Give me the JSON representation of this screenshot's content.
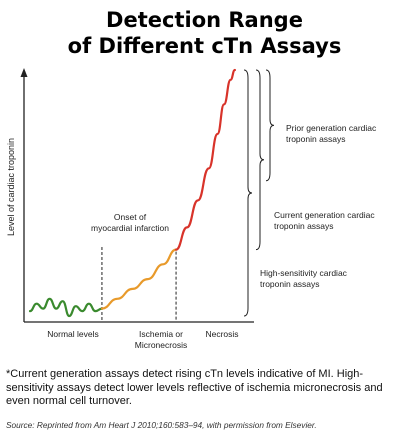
{
  "title_line1": "Detection Range",
  "title_line2": "of Different cTn Assays",
  "colors": {
    "normal": "#3a8a2e",
    "ischemia": "#e89a2b",
    "necrosis": "#d8332a",
    "axis": "#222222"
  },
  "chart_data": {
    "type": "line",
    "title": "Detection Range of Different cTn Assays",
    "xlabel": "",
    "ylabel": "Level of cardiac troponin",
    "categories": [
      "Normal levels",
      "Ischemia or Micronecrosis",
      "Necrosis"
    ],
    "markers": [
      {
        "label": "Onset of myocardial infarction",
        "x": 0.33
      },
      {
        "label": "",
        "x": 0.67
      }
    ],
    "series": [
      {
        "segment": "normal",
        "color": "#3a8a2e",
        "x": [
          0.0,
          0.03,
          0.06,
          0.09,
          0.12,
          0.15,
          0.18,
          0.21,
          0.24,
          0.27,
          0.3,
          0.33
        ],
        "y": [
          0.02,
          0.05,
          0.03,
          0.07,
          0.03,
          0.06,
          0.0,
          0.04,
          0.02,
          0.05,
          0.02,
          0.03
        ]
      },
      {
        "segment": "ischemia",
        "color": "#e89a2b",
        "x": [
          0.33,
          0.4,
          0.47,
          0.54,
          0.61,
          0.67
        ],
        "y": [
          0.03,
          0.07,
          0.11,
          0.15,
          0.21,
          0.27
        ]
      },
      {
        "segment": "necrosis",
        "color": "#d8332a",
        "x": [
          0.67,
          0.72,
          0.77,
          0.82,
          0.86,
          0.89,
          0.92,
          0.94
        ],
        "y": [
          0.27,
          0.36,
          0.47,
          0.6,
          0.74,
          0.86,
          0.96,
          1.0
        ]
      }
    ],
    "assay_ranges": [
      {
        "label": "Prior generation cardiac troponin assays",
        "from": 0.55,
        "to": 1.0
      },
      {
        "label": "Current generation cardiac troponin assays",
        "from": 0.27,
        "to": 1.0
      },
      {
        "label": "High-sensitivity cardiac troponin assays",
        "from": 0.0,
        "to": 1.0
      }
    ],
    "xlim": [
      0,
      1
    ],
    "ylim": [
      0,
      1
    ],
    "grid": false
  },
  "labels": {
    "ylabel": "Level of cardiac troponin",
    "normal": "Normal levels",
    "ischemia_line1": "Ischemia or",
    "ischemia_line2": "Micronecrosis",
    "necrosis": "Necrosis",
    "onset_line1": "Onset of",
    "onset_line2": "myocardial infarction",
    "prior_line1": "Prior generation cardiac",
    "prior_line2": "troponin assays",
    "current_line1": "Current generation cardiac",
    "current_line2": "troponin assays",
    "hs_line1": "High-sensitivity cardiac",
    "hs_line2": "troponin assays"
  },
  "footnote": "*Current generation assays detect rising cTn levels indicative of MI. High-sensitivity assays detect lower levels reflective of ischemia micronecrosis and even normal cell turnover.",
  "source": "Source: Reprinted from Am Heart J 2010;160:583–94, with permission from Elsevier."
}
